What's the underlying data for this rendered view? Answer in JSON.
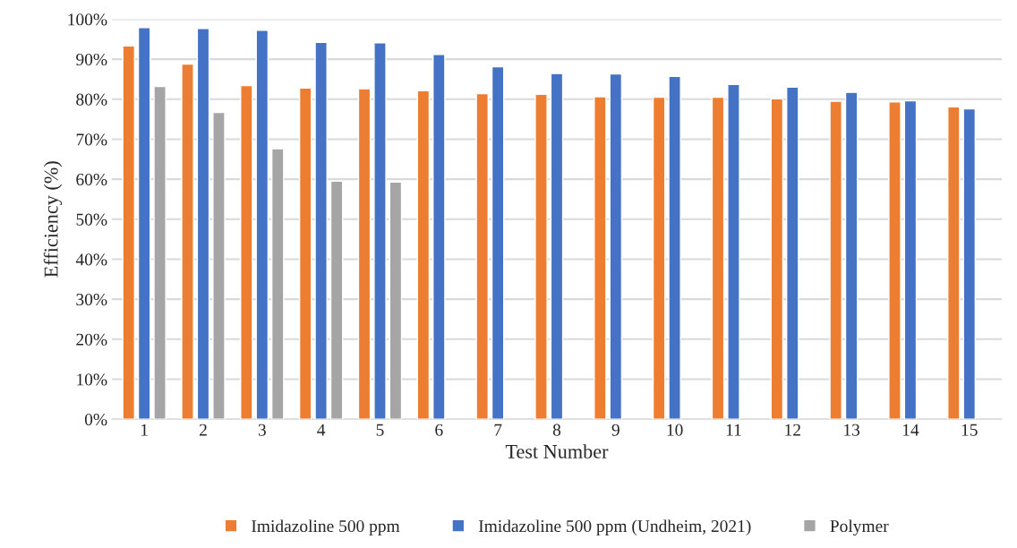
{
  "chart_data": {
    "type": "bar",
    "xlabel": "Test Number",
    "ylabel": "Efficiency (%)",
    "categories": [
      "1",
      "2",
      "3",
      "4",
      "5",
      "6",
      "7",
      "8",
      "9",
      "10",
      "11",
      "12",
      "13",
      "14",
      "15"
    ],
    "series": [
      {
        "name": "Imidazoline 500 ppm",
        "color": "#ed7d31",
        "values": [
          93.3,
          88.8,
          83.4,
          82.8,
          82.6,
          82.1,
          81.4,
          81.2,
          80.6,
          80.5,
          80.5,
          80.1,
          79.5,
          79.3,
          78.1
        ]
      },
      {
        "name": "Imidazoline 500 ppm (Undheim, 2021)",
        "color": "#4472c4",
        "values": [
          97.9,
          97.7,
          97.2,
          94.2,
          94.1,
          91.2,
          88.1,
          86.4,
          86.3,
          85.7,
          83.7,
          83.0,
          81.7,
          79.6,
          77.6
        ]
      },
      {
        "name": "Polymer",
        "color": "#a5a5a5",
        "values": [
          83.2,
          76.7,
          67.6,
          59.5,
          59.3,
          null,
          null,
          null,
          null,
          null,
          null,
          null,
          null,
          null,
          null
        ]
      }
    ],
    "ylim": [
      0,
      100
    ],
    "yticks": [
      {
        "value": 0,
        "label": "0%"
      },
      {
        "value": 10,
        "label": "10%"
      },
      {
        "value": 20,
        "label": "20%"
      },
      {
        "value": 30,
        "label": "30%"
      },
      {
        "value": 40,
        "label": "40%"
      },
      {
        "value": 50,
        "label": "50%"
      },
      {
        "value": 60,
        "label": "60%"
      },
      {
        "value": 70,
        "label": "70%"
      },
      {
        "value": 80,
        "label": "80%"
      },
      {
        "value": 90,
        "label": "90%"
      },
      {
        "value": 100,
        "label": "100%"
      }
    ],
    "grid": "y",
    "legend": "bottom"
  }
}
